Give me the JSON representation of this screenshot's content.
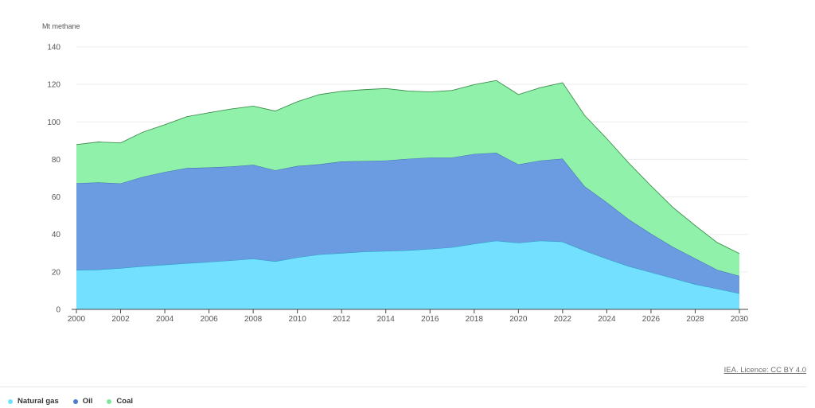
{
  "chart_data": {
    "type": "area",
    "stacked": true,
    "ylabel": "Mt methane",
    "ylim": [
      0,
      140
    ],
    "yticks": [
      0,
      20,
      40,
      60,
      80,
      100,
      120,
      140
    ],
    "xlim": [
      2000,
      2030
    ],
    "xticks": [
      2000,
      2002,
      2004,
      2006,
      2008,
      2010,
      2012,
      2014,
      2016,
      2018,
      2020,
      2022,
      2024,
      2026,
      2028,
      2030
    ],
    "grid": true,
    "legend_position": "bottom-left",
    "x": [
      2000,
      2001,
      2002,
      2003,
      2004,
      2005,
      2006,
      2007,
      2008,
      2009,
      2010,
      2011,
      2012,
      2013,
      2014,
      2015,
      2016,
      2017,
      2018,
      2019,
      2020,
      2021,
      2022,
      2023,
      2024,
      2025,
      2026,
      2027,
      2028,
      2029,
      2030
    ],
    "series": [
      {
        "name": "Natural gas",
        "color": "#73e0ff",
        "values": [
          21,
          21.2,
          22,
          23,
          23.8,
          24.6,
          25.3,
          26.1,
          27,
          25.6,
          27.7,
          29.3,
          30,
          30.8,
          31.1,
          31.5,
          32.2,
          33.1,
          35,
          36.6,
          35.5,
          36.6,
          36.1,
          31.3,
          27,
          23,
          19.8,
          16.6,
          13.4,
          11,
          8.5
        ]
      },
      {
        "name": "Oil",
        "color": "#6b9be0",
        "values": [
          46.3,
          46.5,
          45.2,
          47.7,
          49.5,
          50.8,
          50.4,
          50.1,
          50.1,
          48.6,
          48.8,
          48.1,
          48.9,
          48.3,
          48.3,
          48.8,
          48.8,
          47.9,
          47.9,
          46.9,
          41.8,
          42.8,
          44.3,
          34.3,
          30.1,
          25,
          20.6,
          16.7,
          13.8,
          10.1,
          9.3
        ]
      },
      {
        "name": "Coal",
        "color": "#90f2aa",
        "values": [
          20.6,
          21.6,
          21.6,
          23.8,
          25.2,
          27.4,
          29.2,
          30.7,
          31.3,
          31.6,
          34.3,
          37.2,
          37.4,
          38.1,
          38.4,
          36.2,
          35,
          35.8,
          37,
          38.6,
          37.3,
          38.9,
          40.5,
          37.8,
          34,
          30,
          25.5,
          21,
          17.5,
          14.5,
          12
        ]
      }
    ],
    "lines": {
      "gas_top": "#1d9bc0",
      "oil_top": "#3d67ad",
      "coal_top": "#3f8f4d"
    }
  },
  "credit": "IEA. Licence: CC BY 4.0"
}
